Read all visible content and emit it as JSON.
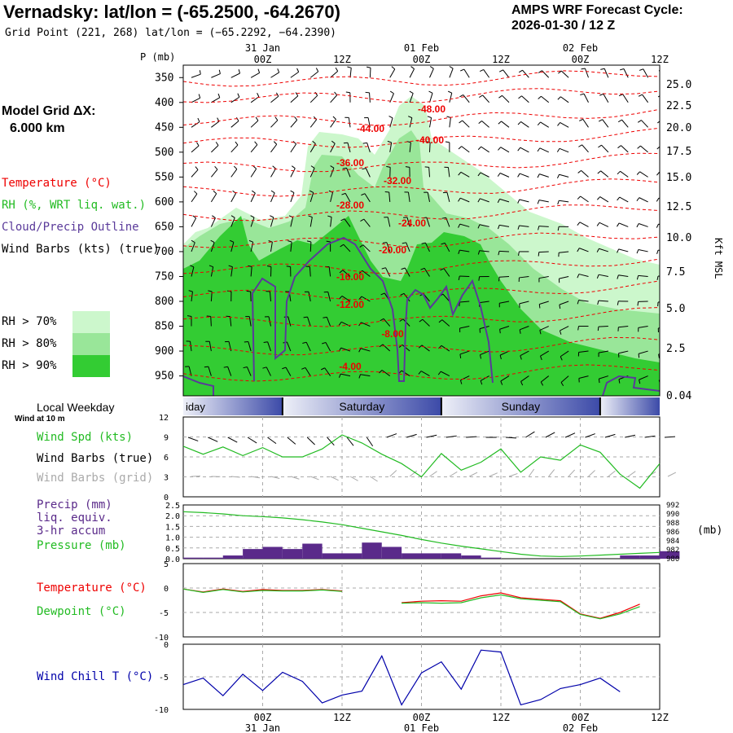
{
  "header": {
    "title": "Vernadsky:  lat/lon = (-65.2500, -64.2670)",
    "grid_point": "Grid Point (221, 268) lat/lon = (−65.2292, −64.2390)",
    "cycle_line1": "AMPS WRF Forecast Cycle:",
    "cycle_line2": "2026-01-30 / 12  Z"
  },
  "model_grid": {
    "line1": "Model Grid ΔX:",
    "line2": "6.000 km"
  },
  "legend": {
    "temperature": "Temperature (°C)",
    "rh": "RH (%, WRT liq. wat.)",
    "cloud": "Cloud/Precip Outline",
    "wind_barbs": "Wind Barbs (kts) (true)",
    "rh70": "RH > 70%",
    "rh80": "RH > 80%",
    "rh90": "RH > 90%"
  },
  "colors": {
    "temp": "#ee0000",
    "rh70": "#ccf7cc",
    "rh80": "#99e699",
    "rh90": "#33cc33",
    "cloud": "#5a3a9a",
    "precip_bar": "#5a2a8a",
    "pressure": "#22bb22",
    "dewpoint": "#22bb22",
    "windchill": "#0000aa",
    "windspd": "#22bb22",
    "barb_grid": "#aaaaaa"
  },
  "time_axis": {
    "top_dates": [
      "31 Jan",
      "01 Feb",
      "02 Feb"
    ],
    "ticks": [
      "00Z",
      "12Z",
      "00Z",
      "12Z",
      "00Z",
      "12Z"
    ],
    "bottom_dates": [
      "31 Jan",
      "01 Feb",
      "02 Feb"
    ]
  },
  "weekday_bar": {
    "label": "Local Weekday",
    "days": [
      "Friday",
      "Saturday",
      "Sunday"
    ]
  },
  "wind_panel": {
    "note": "Wind at 10 m",
    "spd_label": "Wind Spd (kts)",
    "barb_true_label": "Wind Barbs (true)",
    "barb_grid_label": "Wind Barbs (grid)"
  },
  "precip_panel": {
    "line1": "Precip (mm)",
    "line2": "liq. equiv.",
    "line3": "3-hr accum",
    "line4": "Pressure (mb)",
    "right_unit": "(mb)"
  },
  "temp_panel": {
    "temp_label": "Temperature (°C)",
    "dew_label": "Dewpoint (°C)"
  },
  "chill_panel": {
    "label": "Wind Chill T (°C)"
  },
  "chart_data": [
    {
      "type": "area",
      "name": "time-height cross section",
      "ylabel": "P (mb)",
      "y2label": "Kft MSL",
      "pressure_ticks": [
        350,
        400,
        450,
        500,
        550,
        600,
        650,
        700,
        750,
        800,
        850,
        900,
        950
      ],
      "height_ticks": [
        "25.0",
        "22.5",
        "20.0",
        "17.5",
        "15.0",
        "12.5",
        "10.0",
        "7.5",
        "5.0",
        "2.5",
        "0.04"
      ],
      "temp_contour_labels": [
        "-48.00",
        "-44.00",
        "-40.00",
        "-36.00",
        "-32.00",
        "-28.00",
        "-24.00",
        "-20.00",
        "-16.00",
        "-12.00",
        "-8.00",
        "-4.00"
      ]
    },
    {
      "type": "line",
      "name": "wind speed 10 m",
      "ylim": [
        0,
        12
      ],
      "yticks": [
        0,
        3,
        6,
        9,
        12
      ],
      "x_hours": [
        0,
        3,
        6,
        9,
        12,
        15,
        18,
        21,
        24,
        27,
        30,
        33,
        36,
        39,
        42,
        45,
        48,
        51,
        54,
        57,
        60,
        63,
        66,
        69,
        72
      ],
      "wind_speed_kts": [
        7.6,
        6.4,
        7.5,
        6.2,
        7.4,
        6.0,
        6.0,
        7.2,
        9.3,
        8.1,
        6.4,
        5.0,
        3.0,
        6.5,
        4.0,
        5.2,
        7.2,
        3.7,
        6.0,
        5.5,
        7.8,
        6.7,
        3.4,
        1.3,
        5.0
      ]
    },
    {
      "type": "bar",
      "name": "precipitation and pressure",
      "ylim": [
        0,
        2.5
      ],
      "yticks": [
        0.0,
        0.5,
        1.0,
        1.5,
        2.0,
        2.5
      ],
      "y2ticks": [
        980,
        982,
        984,
        986,
        988,
        990,
        992
      ],
      "precip_mm": [
        0.05,
        0.05,
        0.15,
        0.45,
        0.55,
        0.45,
        0.7,
        0.25,
        0.25,
        0.75,
        0.55,
        0.25,
        0.25,
        0.25,
        0.15,
        0.05,
        0.0,
        0.0,
        0.0,
        0.0,
        0.0,
        0.0,
        0.15,
        0.15,
        0.35
      ],
      "pressure_mb": [
        990.5,
        990.3,
        990.0,
        989.6,
        989.4,
        989.1,
        988.7,
        988.2,
        987.6,
        986.8,
        986.0,
        985.2,
        984.3,
        983.5,
        982.8,
        982.2,
        981.6,
        981.0,
        980.6,
        980.5,
        980.6,
        980.8,
        981.0,
        981.2,
        981.4
      ]
    },
    {
      "type": "line",
      "name": "temperature and dewpoint",
      "ylim": [
        -10,
        5
      ],
      "yticks": [
        -10,
        -5,
        0,
        5
      ],
      "temperature_c": [
        -0.2,
        -0.8,
        -0.2,
        -0.7,
        -0.3,
        -0.5,
        -0.5,
        -0.3,
        -0.6,
        null,
        null,
        -3.0,
        -2.7,
        -2.6,
        -2.7,
        -1.6,
        -1.0,
        -2.0,
        -2.3,
        -2.6,
        -5.3,
        -6.2,
        -5.0,
        -3.3,
        null
      ],
      "dewpoint_c": [
        -0.2,
        -0.9,
        -0.3,
        -0.8,
        -0.5,
        -0.6,
        -0.6,
        -0.4,
        -0.7,
        null,
        null,
        -3.1,
        -3.0,
        -3.1,
        -3.0,
        -2.0,
        -1.4,
        -2.2,
        -2.5,
        -2.8,
        -5.4,
        -6.3,
        -5.3,
        -3.8,
        null
      ]
    },
    {
      "type": "line",
      "name": "wind chill",
      "ylim": [
        -10,
        0
      ],
      "yticks": [
        -10,
        -5,
        0
      ],
      "wind_chill_c": [
        -6.2,
        -5.2,
        -7.9,
        -4.6,
        -7.1,
        -4.3,
        -5.7,
        -9.0,
        -7.8,
        -7.2,
        -1.8,
        -9.3,
        -4.4,
        -2.7,
        -6.9,
        -0.9,
        -1.2,
        -9.3,
        -8.5,
        -6.8,
        -6.2,
        -5.2,
        -7.3,
        null,
        null
      ]
    }
  ]
}
